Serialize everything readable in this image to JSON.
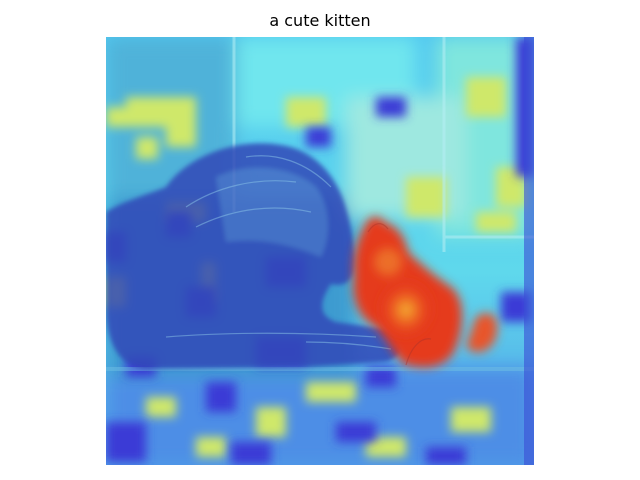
{
  "figure": {
    "title": "a cute kitten"
  },
  "image": {
    "description_icon": "attention-heatmap-overlay",
    "subjects": [
      "dog-silhouette",
      "kitten-silhouette"
    ],
    "colormap": {
      "low": "#3a33d8",
      "mid_low": "#3fd3e8",
      "mid": "#d8e860",
      "high": "#e23a1c"
    }
  }
}
